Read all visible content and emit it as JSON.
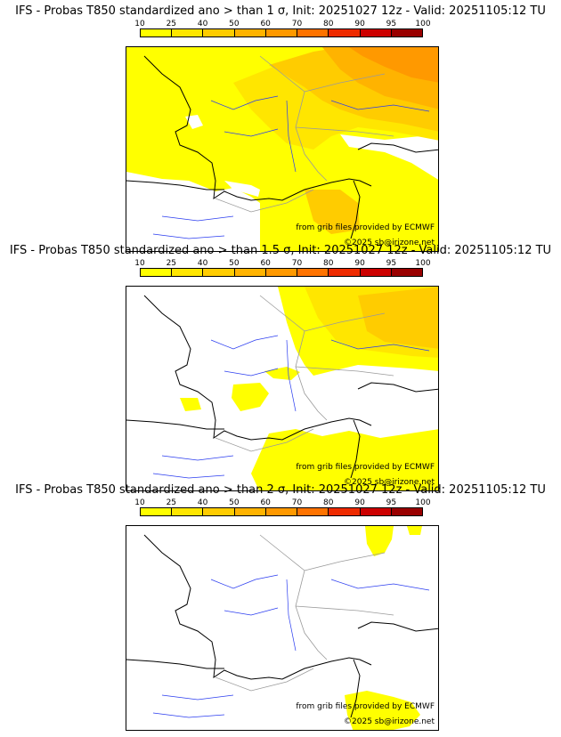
{
  "colorbar": {
    "labels": [
      "10",
      "25",
      "40",
      "50",
      "60",
      "70",
      "80",
      "90",
      "95",
      "100"
    ],
    "colors": [
      "#ffff00",
      "#ffe600",
      "#ffcc00",
      "#ffb300",
      "#ff9900",
      "#ff7300",
      "#ee2a00",
      "#cc0000",
      "#990000",
      "#660000"
    ]
  },
  "panels": [
    {
      "title": "IFS - Probas T850  standardized ano > than 1 σ, Init: 20251027 12z - Valid: 20251105:12 TU",
      "credit1": "from grib files provided by ECMWF",
      "credit2": "©2025 sb@irizone.net"
    },
    {
      "title": "IFS - Probas T850  standardized ano > than 1.5 σ, Init: 20251027 12z - Valid: 20251105:12 TU",
      "credit1": "from grib files provided by ECMWF",
      "credit2": "©2025 sb@irizone.net"
    },
    {
      "title": "IFS - Probas T850  standardized ano > than 2 σ, Init: 20251027 12z - Valid: 20251105:12 TU",
      "credit1": "from grib files provided by ECMWF",
      "credit2": "©2025 sb@irizone.net"
    }
  ],
  "map_colors": {
    "p10": "#ffff00",
    "p25": "#ffe600",
    "p40": "#ffcc00",
    "p50": "#ffb300",
    "p60": "#ff9900",
    "coast": "#000000",
    "rivers": "#2a3cf0",
    "borders": "#9a9a9a"
  }
}
